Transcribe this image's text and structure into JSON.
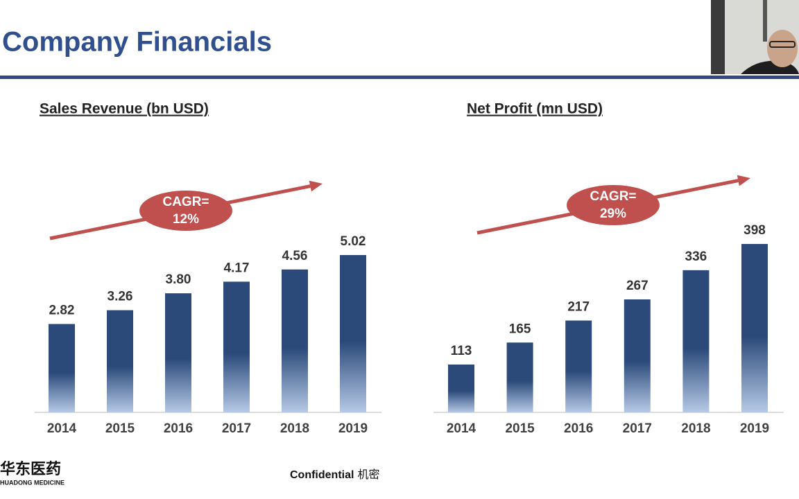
{
  "title": "Company Financials",
  "chart_data": [
    {
      "type": "bar",
      "title": "Sales Revenue (bn USD)",
      "categories": [
        "2014",
        "2015",
        "2016",
        "2017",
        "2018",
        "2019"
      ],
      "values": [
        2.82,
        3.26,
        3.8,
        4.17,
        4.56,
        5.02
      ],
      "value_labels": [
        "2.82",
        "3.26",
        "3.80",
        "4.17",
        "4.56",
        "5.02"
      ],
      "color": "#2b4a7a",
      "annotation": [
        "CAGR=",
        "12%"
      ]
    },
    {
      "type": "bar",
      "title": "Net Profit (mn USD)",
      "categories": [
        "2014",
        "2015",
        "2016",
        "2017",
        "2018",
        "2019"
      ],
      "values": [
        113,
        165,
        217,
        267,
        336,
        398
      ],
      "color": "#2b4a7a",
      "annotation": [
        "CAGR=",
        "29%"
      ]
    }
  ],
  "footer": {
    "label": "Confidential",
    "note": "机密"
  },
  "logo": {
    "name": "华东医药",
    "subtitle": "HUADONG MEDICINE"
  }
}
